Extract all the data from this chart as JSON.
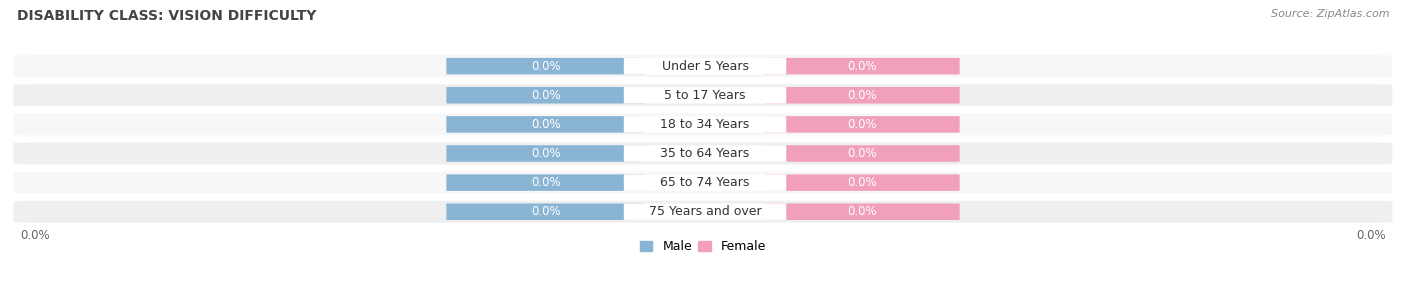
{
  "title": "DISABILITY CLASS: VISION DIFFICULTY",
  "source_text": "Source: ZipAtlas.com",
  "categories": [
    "Under 5 Years",
    "5 to 17 Years",
    "18 to 34 Years",
    "35 to 64 Years",
    "65 to 74 Years",
    "75 Years and over"
  ],
  "male_values": [
    0.0,
    0.0,
    0.0,
    0.0,
    0.0,
    0.0
  ],
  "female_values": [
    0.0,
    0.0,
    0.0,
    0.0,
    0.0,
    0.0
  ],
  "male_color": "#8ab4d4",
  "female_color": "#f0a0b8",
  "title_fontsize": 10,
  "label_fontsize": 9,
  "value_fontsize": 8.5,
  "tick_fontsize": 8.5,
  "source_fontsize": 8,
  "figsize": [
    14.06,
    3.05
  ],
  "dpi": 100,
  "bg_color": "#ffffff",
  "row_color_light": "#f7f7f7",
  "row_color_dark": "#efefef",
  "center_label_color": "#ffffff",
  "row_separator_color": "#dddddd"
}
